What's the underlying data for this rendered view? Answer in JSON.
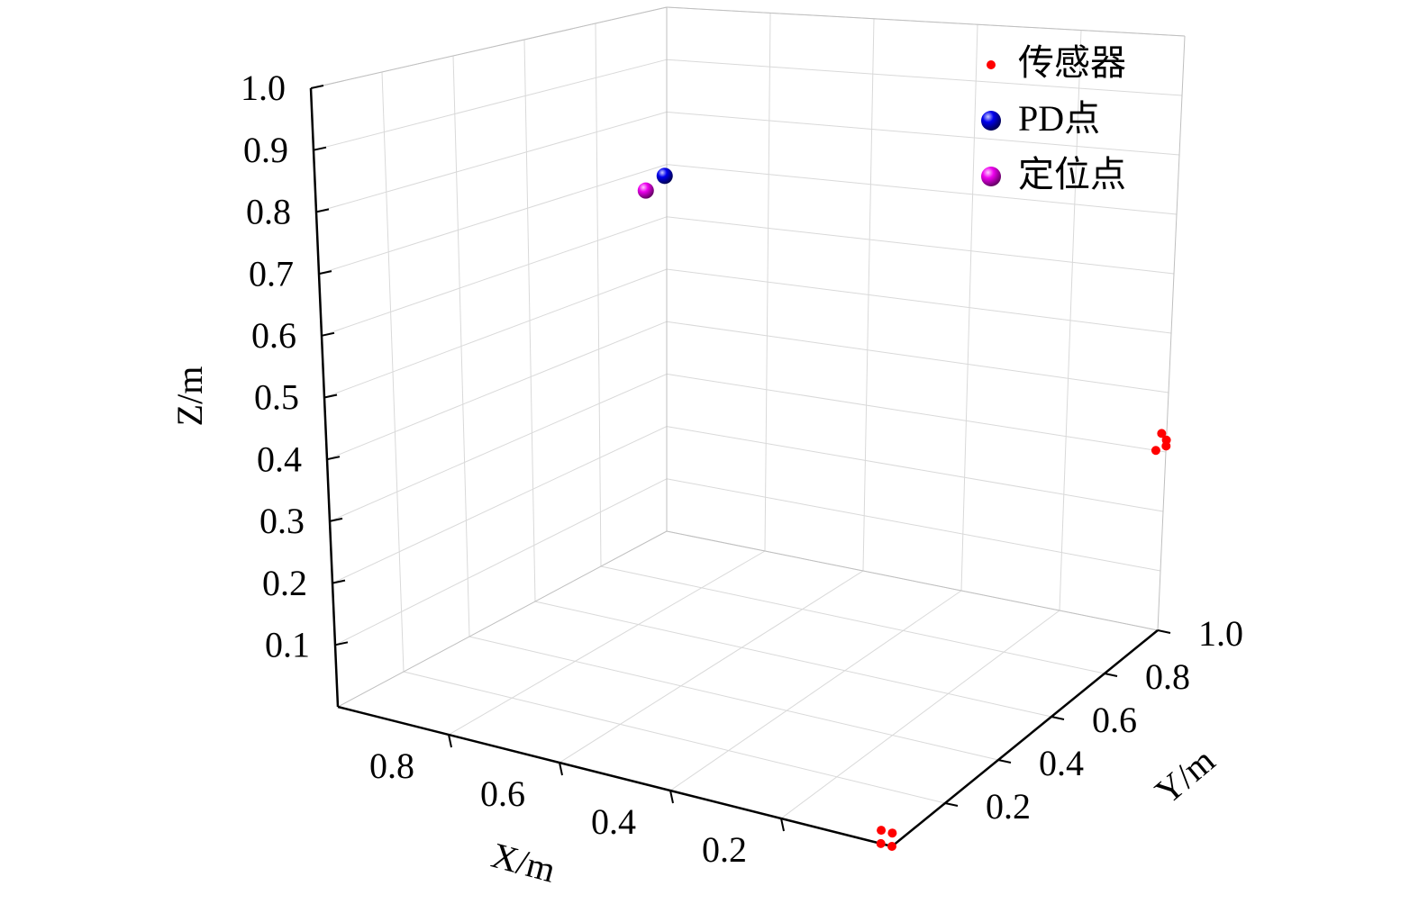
{
  "chart_data": {
    "type": "scatter3d",
    "xlabel": "X/m",
    "ylabel": "Y/m",
    "zlabel": "Z/m",
    "xlim": [
      0,
      1
    ],
    "ylim": [
      0,
      1
    ],
    "zlim": [
      0,
      1
    ],
    "xticks": [
      0.2,
      0.4,
      0.6,
      0.8
    ],
    "yticks": [
      0.2,
      0.4,
      0.6,
      0.8,
      {
        "value": 1,
        "label": "1.0"
      }
    ],
    "zticks": [
      0.1,
      0.2,
      0.3,
      0.4,
      0.5,
      0.6,
      0.7,
      0.8,
      0.9,
      {
        "value": 1,
        "label": "1.0"
      }
    ],
    "grid": true,
    "legend": "upper right",
    "series": [
      {
        "name": "传感器",
        "color": "#ff0000",
        "x": [
          0,
          0.02,
          0,
          0.02,
          0,
          0.01,
          0.02,
          0
        ],
        "y": [
          0,
          0,
          0,
          0,
          1,
          1,
          1,
          1
        ],
        "z": [
          0,
          0,
          0.02,
          0.02,
          0.31,
          0.33,
          0.3,
          0.32
        ]
      },
      {
        "name": "PD点",
        "color": "#0000ee",
        "x": [
          0.95
        ],
        "y": [
          0.92
        ],
        "z": [
          0.7
        ]
      },
      {
        "name": "定位点",
        "color": "#ee00ee",
        "x": [
          0.96
        ],
        "y": [
          0.88
        ],
        "z": [
          0.68
        ]
      }
    ]
  }
}
